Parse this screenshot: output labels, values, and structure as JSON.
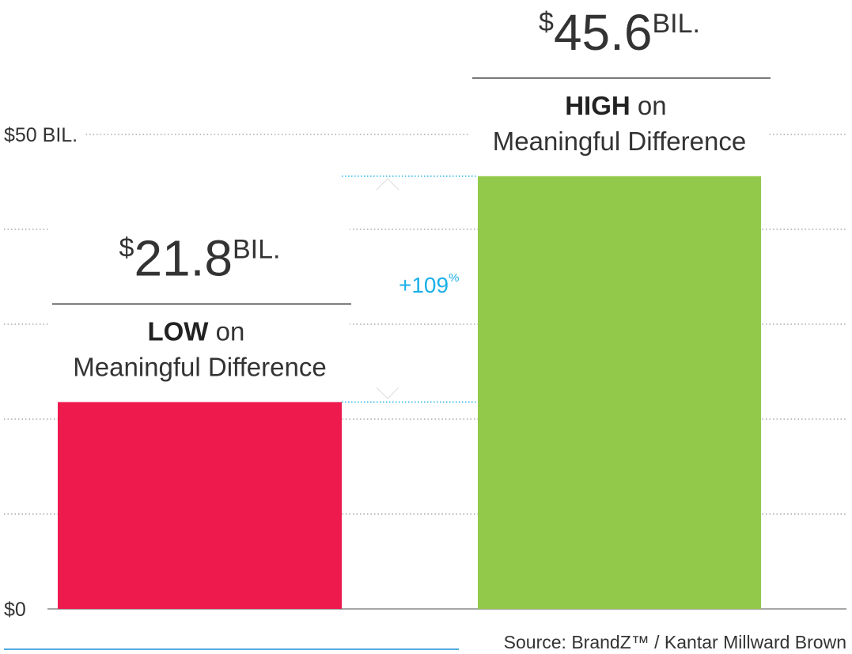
{
  "chart_data": {
    "type": "bar",
    "categories": [
      "LOW on Meaningful Difference",
      "HIGH on Meaningful Difference"
    ],
    "values": [
      21.8,
      45.6
    ],
    "value_labels": [
      "$21.8BIL.",
      "$45.6BIL."
    ],
    "colors": [
      "#ee1a4e",
      "#92c94a"
    ],
    "ylim": [
      0,
      50
    ],
    "yticks": [
      {
        "value": 0,
        "label": "$0"
      },
      {
        "value": 10,
        "label": null
      },
      {
        "value": 20,
        "label": null
      },
      {
        "value": 30,
        "label": null
      },
      {
        "value": 40,
        "label": null
      },
      {
        "value": 50,
        "label": "$50 BIL."
      }
    ],
    "grid": true,
    "annotation": "+109%",
    "annotation_color": "#1ab0e8",
    "source": "Source: BrandZ™ / Kantar Millward Brown"
  }
}
